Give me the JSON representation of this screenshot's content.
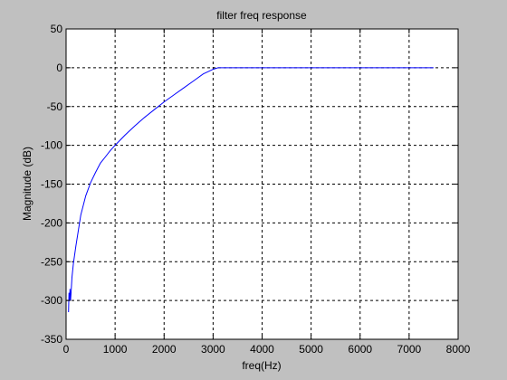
{
  "chart_data": {
    "type": "line",
    "title": "filter freq response",
    "xlabel": "freq(Hz)",
    "ylabel": "Magnitude (dB)",
    "xlim": [
      0,
      8000
    ],
    "ylim": [
      -350,
      50
    ],
    "xticks": [
      0,
      1000,
      2000,
      3000,
      4000,
      5000,
      6000,
      7000,
      8000
    ],
    "yticks": [
      50,
      0,
      -50,
      -100,
      -150,
      -200,
      -250,
      -300,
      -350
    ],
    "grid": true,
    "grid_style": "dashed",
    "background_color": "#c0c0c0",
    "axes_color": "#ffffff",
    "series": [
      {
        "color": "#0000ff",
        "x": [
          50,
          60,
          70,
          80,
          90,
          100,
          120,
          150,
          200,
          250,
          300,
          400,
          500,
          600,
          700,
          800,
          900,
          1000,
          1200,
          1400,
          1600,
          1800,
          2000,
          2200,
          2400,
          2600,
          2800,
          3000,
          3100,
          3200,
          3300,
          3500,
          4000,
          5000,
          6000,
          7000,
          7500
        ],
        "y": [
          -315,
          -290,
          -300,
          -285,
          -300,
          -292,
          -270,
          -252,
          -230,
          -210,
          -190,
          -165,
          -148,
          -135,
          -123,
          -115,
          -107,
          -100,
          -87,
          -75,
          -64,
          -54,
          -44,
          -35,
          -26,
          -17,
          -8,
          -2,
          0,
          0,
          0,
          0,
          0,
          0,
          0,
          0,
          0
        ]
      }
    ]
  }
}
